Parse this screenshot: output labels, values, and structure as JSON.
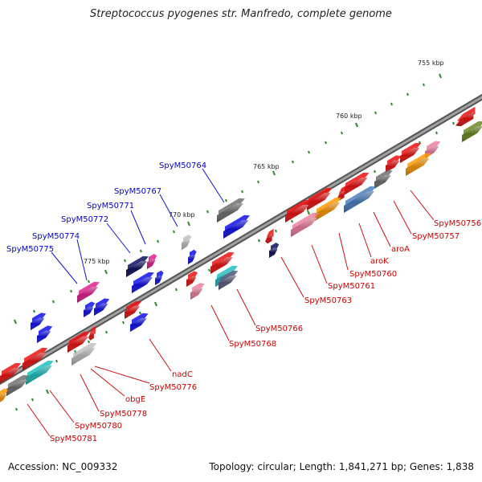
{
  "title": "Streptococcus pyogenes str. Manfredo, complete genome",
  "footer": {
    "accession": "Accession: NC_009332",
    "info": "Topology: circular; Length: 1,841,271 bp; Genes: 1,838"
  },
  "colors": {
    "backbone": "#808080",
    "label_top": "#0000cc",
    "label_bottom": "#cc0000",
    "tick": "#2a8a2a",
    "red": "#ee1111",
    "blue": "#1111ee",
    "navy": "#101060",
    "pink": "#f080a0",
    "magenta": "#e02090",
    "orange": "#ff9900",
    "steel": "#4a7fc0",
    "gray": "#707070",
    "lightgray": "#c0c0c0",
    "cyan": "#20c0c0",
    "olive": "#6a8a20",
    "slate": "#606080"
  },
  "scale_labels": [
    "755 kbp",
    "760 kbp",
    "765 kbp",
    "770 kbp",
    "775 kbp"
  ],
  "gene_labels_top": [
    "SpyM50764",
    "SpyM50767",
    "SpyM50771",
    "SpyM50772",
    "SpyM50774",
    "SpyM50775"
  ],
  "gene_labels_bottom": [
    "SpyM50756",
    "SpyM50757",
    "aroA",
    "aroK",
    "SpyM50760",
    "SpyM50761",
    "SpyM50763",
    "SpyM50766",
    "SpyM50768",
    "nadC",
    "SpyM50776",
    "obgE",
    "SpyM50778",
    "SpyM50780",
    "SpyM50781"
  ]
}
